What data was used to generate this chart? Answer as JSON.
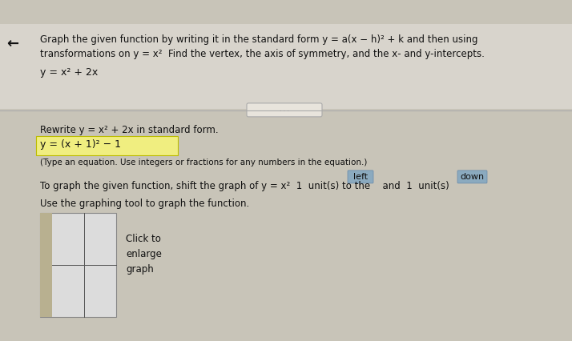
{
  "bg_top_color": "#4a9ab5",
  "bg_color": "#c8c4b8",
  "panel_color": "#e8e4dc",
  "title_line1": "Graph the given function by writing it in the standard form y = a(x − h)² + k and then using",
  "title_line2": "transformations on y = x²  Find the vertex, the axis of symmetry, and the x- and y-intercepts.",
  "equation_top": "y = x² + 2x",
  "rewrite_label": "Rewrite y = x² + 2x in standard form.",
  "standard_form": "y = (x + 1)² − 1",
  "standard_form_bg": "#f0ee80",
  "type_note": "(Type an equation. Use integers or fractions for any numbers in the equation.)",
  "shift_line": "To graph the given function, shift the graph of y = x²  1  unit(s) to the",
  "shift_suffix": "and  1  unit(s)  down",
  "shift_direction1": "left",
  "shift_direction2": "down",
  "shift_btn_color": "#8baabf",
  "use_graphing": "Use the graphing tool to graph the function.",
  "click_to": "Click to\nenlarge\ngraph",
  "text_color": "#111111",
  "small_text_color": "#222222",
  "header_fontsize": 8.5,
  "body_fontsize": 8.5,
  "small_fontsize": 7.5,
  "left_arrow": "←"
}
